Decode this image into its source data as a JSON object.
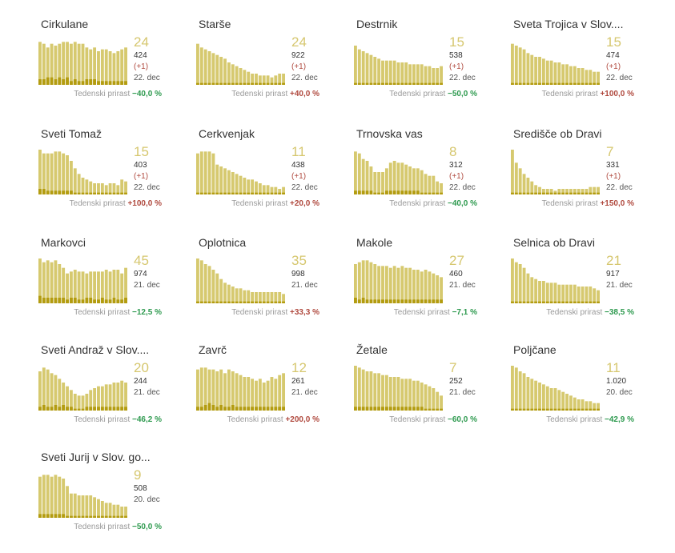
{
  "colors": {
    "bar_light": "#d6c96f",
    "bar_dark": "#b39c10",
    "growth_up": "#b04a3f",
    "growth_down": "#2e9a4f",
    "big_number": "#d6c76f"
  },
  "growth_label": "Tedenski prirast",
  "chart_data": [
    {
      "type": "bar",
      "title": "Cirkulane",
      "big": "24",
      "total": "424",
      "delta": "(+1)",
      "date": "22. dec",
      "growth": "−40,0 %",
      "growth_dir": "down",
      "values": [
        23,
        22,
        20,
        22,
        21,
        22,
        23,
        23,
        22,
        23,
        22,
        22,
        20,
        19,
        20,
        18,
        19,
        19,
        18,
        17,
        18,
        19,
        20
      ],
      "values_dark": [
        3,
        3,
        4,
        4,
        3,
        4,
        3,
        4,
        2,
        3,
        2,
        2,
        3,
        3,
        3,
        2,
        2,
        2,
        2,
        2,
        2,
        2,
        2
      ],
      "ylim": [
        0,
        24
      ]
    },
    {
      "type": "bar",
      "title": "Starše",
      "big": "24",
      "total": "922",
      "delta": "(+1)",
      "date": "22. dec",
      "growth": "+40,0 %",
      "growth_dir": "up",
      "values": [
        22,
        20,
        19,
        18,
        17,
        16,
        15,
        14,
        12,
        11,
        10,
        9,
        8,
        7,
        6,
        6,
        5,
        5,
        5,
        4,
        5,
        6,
        6
      ],
      "values_dark": [
        1,
        1,
        1,
        1,
        1,
        1,
        1,
        1,
        1,
        1,
        1,
        1,
        1,
        1,
        1,
        1,
        1,
        1,
        1,
        1,
        1,
        1,
        1
      ],
      "ylim": [
        0,
        24
      ]
    },
    {
      "type": "bar",
      "title": "Destrnik",
      "big": "15",
      "total": "538",
      "delta": "(+1)",
      "date": "22. dec",
      "growth": "−50,0 %",
      "growth_dir": "down",
      "values": [
        21,
        19,
        18,
        17,
        16,
        15,
        14,
        13,
        13,
        13,
        13,
        12,
        12,
        12,
        11,
        11,
        11,
        11,
        10,
        10,
        9,
        9,
        10
      ],
      "values_dark": [
        1,
        1,
        1,
        1,
        1,
        1,
        1,
        1,
        1,
        1,
        1,
        1,
        1,
        1,
        1,
        1,
        1,
        1,
        1,
        1,
        1,
        1,
        1
      ],
      "ylim": [
        0,
        24
      ]
    },
    {
      "type": "bar",
      "title": "Sveta Trojica v Slov....",
      "big": "15",
      "total": "474",
      "delta": "(+1)",
      "date": "22. dec",
      "growth": "+100,0 %",
      "growth_dir": "up",
      "values": [
        22,
        21,
        20,
        19,
        17,
        16,
        15,
        15,
        14,
        13,
        13,
        12,
        12,
        11,
        11,
        10,
        10,
        9,
        9,
        8,
        8,
        7,
        7
      ],
      "values_dark": [
        1,
        1,
        1,
        1,
        1,
        1,
        1,
        1,
        1,
        1,
        1,
        1,
        1,
        1,
        1,
        1,
        1,
        1,
        1,
        1,
        1,
        1,
        1
      ],
      "ylim": [
        0,
        24
      ]
    },
    {
      "type": "bar",
      "title": "Sveti Tomaž",
      "big": "15",
      "total": "403",
      "delta": "(+1)",
      "date": "22. dec",
      "growth": "+100,0 %",
      "growth_dir": "up",
      "values": [
        24,
        22,
        22,
        22,
        23,
        23,
        22,
        21,
        18,
        14,
        11,
        9,
        8,
        7,
        6,
        6,
        6,
        5,
        6,
        6,
        5,
        8,
        7
      ],
      "values_dark": [
        3,
        3,
        2,
        2,
        2,
        2,
        2,
        2,
        2,
        1,
        1,
        1,
        1,
        1,
        1,
        1,
        1,
        1,
        1,
        1,
        1,
        1,
        1
      ],
      "ylim": [
        0,
        24
      ]
    },
    {
      "type": "bar",
      "title": "Cerkvenjak",
      "big": "11",
      "total": "438",
      "delta": "(+1)",
      "date": "22. dec",
      "growth": "+20,0 %",
      "growth_dir": "up",
      "values": [
        22,
        23,
        23,
        23,
        22,
        16,
        15,
        14,
        13,
        12,
        11,
        10,
        9,
        8,
        8,
        7,
        6,
        5,
        5,
        4,
        4,
        3,
        4
      ],
      "values_dark": [
        1,
        1,
        1,
        1,
        1,
        1,
        1,
        1,
        1,
        1,
        1,
        1,
        1,
        1,
        1,
        1,
        1,
        1,
        1,
        1,
        1,
        1,
        1
      ],
      "ylim": [
        0,
        24
      ]
    },
    {
      "type": "bar",
      "title": "Trnovska vas",
      "big": "8",
      "total": "312",
      "delta": "(+1)",
      "date": "22. dec",
      "growth": "−40,0 %",
      "growth_dir": "down",
      "values": [
        23,
        22,
        19,
        18,
        15,
        12,
        12,
        12,
        14,
        17,
        18,
        17,
        17,
        16,
        15,
        14,
        14,
        13,
        11,
        10,
        10,
        7,
        6
      ],
      "values_dark": [
        2,
        2,
        2,
        2,
        2,
        1,
        1,
        1,
        2,
        2,
        2,
        2,
        2,
        2,
        2,
        2,
        2,
        1,
        1,
        1,
        1,
        1,
        1
      ],
      "ylim": [
        0,
        24
      ]
    },
    {
      "type": "bar",
      "title": "Središče ob Dravi",
      "big": "7",
      "total": "331",
      "delta": "(+1)",
      "date": "22. dec",
      "growth": "+150,0 %",
      "growth_dir": "up",
      "values": [
        24,
        17,
        14,
        11,
        9,
        7,
        5,
        4,
        3,
        3,
        3,
        2,
        3,
        3,
        3,
        3,
        3,
        3,
        3,
        3,
        4,
        4,
        4
      ],
      "values_dark": [
        1,
        1,
        1,
        1,
        1,
        1,
        1,
        1,
        1,
        1,
        1,
        1,
        1,
        1,
        1,
        1,
        1,
        1,
        1,
        1,
        1,
        1,
        1
      ],
      "ylim": [
        0,
        24
      ]
    },
    {
      "type": "bar",
      "title": "Markovci",
      "big": "45",
      "total": "974",
      "delta": "",
      "date": "21. dec",
      "growth": "−12,5 %",
      "growth_dir": "down",
      "values": [
        24,
        22,
        23,
        22,
        23,
        21,
        19,
        16,
        17,
        18,
        17,
        17,
        16,
        17,
        17,
        17,
        17,
        18,
        17,
        18,
        18,
        16,
        19
      ],
      "values_dark": [
        4,
        3,
        3,
        3,
        3,
        3,
        3,
        2,
        3,
        3,
        2,
        2,
        3,
        3,
        2,
        2,
        3,
        2,
        2,
        3,
        2,
        2,
        3
      ],
      "ylim": [
        0,
        24
      ]
    },
    {
      "type": "bar",
      "title": "Oplotnica",
      "big": "35",
      "total": "998",
      "delta": "",
      "date": "21. dec",
      "growth": "+33,3 %",
      "growth_dir": "up",
      "values": [
        24,
        23,
        21,
        20,
        18,
        16,
        13,
        11,
        10,
        9,
        8,
        8,
        7,
        7,
        6,
        6,
        6,
        6,
        6,
        6,
        6,
        6,
        5
      ],
      "values_dark": [
        1,
        1,
        1,
        1,
        1,
        1,
        1,
        1,
        1,
        1,
        1,
        1,
        1,
        1,
        1,
        1,
        1,
        1,
        1,
        1,
        1,
        1,
        1
      ],
      "ylim": [
        0,
        24
      ]
    },
    {
      "type": "bar",
      "title": "Makole",
      "big": "27",
      "total": "460",
      "delta": "",
      "date": "21. dec",
      "growth": "−7,1 %",
      "growth_dir": "down",
      "values": [
        21,
        22,
        23,
        23,
        22,
        21,
        20,
        20,
        20,
        19,
        20,
        19,
        20,
        19,
        19,
        18,
        18,
        17,
        18,
        17,
        16,
        15,
        14
      ],
      "values_dark": [
        3,
        2,
        3,
        2,
        2,
        2,
        2,
        2,
        2,
        2,
        2,
        2,
        2,
        2,
        2,
        2,
        2,
        2,
        2,
        2,
        2,
        2,
        2
      ],
      "ylim": [
        0,
        24
      ]
    },
    {
      "type": "bar",
      "title": "Selnica ob Dravi",
      "big": "21",
      "total": "917",
      "delta": "",
      "date": "21. dec",
      "growth": "−38,5 %",
      "growth_dir": "down",
      "values": [
        24,
        22,
        21,
        19,
        16,
        14,
        13,
        12,
        12,
        11,
        11,
        11,
        10,
        10,
        10,
        10,
        10,
        9,
        9,
        9,
        9,
        8,
        7
      ],
      "values_dark": [
        1,
        1,
        1,
        1,
        1,
        1,
        1,
        1,
        1,
        1,
        1,
        1,
        1,
        1,
        1,
        1,
        1,
        1,
        1,
        1,
        1,
        1,
        1
      ],
      "ylim": [
        0,
        24
      ]
    },
    {
      "type": "bar",
      "title": "Sveti Andraž v Slov....",
      "big": "20",
      "total": "244",
      "delta": "",
      "date": "21. dec",
      "growth": "−46,2 %",
      "growth_dir": "down",
      "values": [
        21,
        23,
        22,
        20,
        19,
        17,
        15,
        13,
        11,
        9,
        8,
        8,
        9,
        11,
        12,
        13,
        13,
        14,
        14,
        15,
        15,
        16,
        15
      ],
      "values_dark": [
        2,
        3,
        2,
        2,
        3,
        2,
        3,
        2,
        2,
        1,
        1,
        1,
        2,
        2,
        2,
        2,
        2,
        2,
        2,
        2,
        2,
        2,
        2
      ],
      "ylim": [
        0,
        24
      ]
    },
    {
      "type": "bar",
      "title": "Zavrč",
      "big": "12",
      "total": "261",
      "delta": "",
      "date": "21. dec",
      "growth": "+200,0 %",
      "growth_dir": "up",
      "values": [
        22,
        23,
        23,
        22,
        22,
        21,
        22,
        20,
        22,
        21,
        20,
        19,
        18,
        18,
        17,
        16,
        17,
        15,
        16,
        18,
        17,
        19,
        20
      ],
      "values_dark": [
        2,
        2,
        3,
        4,
        3,
        2,
        3,
        2,
        2,
        3,
        2,
        2,
        2,
        2,
        2,
        2,
        2,
        2,
        2,
        2,
        2,
        2,
        2
      ],
      "ylim": [
        0,
        24
      ]
    },
    {
      "type": "bar",
      "title": "Žetale",
      "big": "7",
      "total": "252",
      "delta": "",
      "date": "21. dec",
      "growth": "−60,0 %",
      "growth_dir": "down",
      "values": [
        24,
        23,
        22,
        21,
        21,
        20,
        20,
        19,
        19,
        18,
        18,
        18,
        17,
        17,
        17,
        16,
        16,
        15,
        14,
        13,
        12,
        10,
        8
      ],
      "values_dark": [
        2,
        2,
        2,
        2,
        2,
        2,
        2,
        2,
        2,
        2,
        2,
        2,
        2,
        2,
        2,
        2,
        2,
        2,
        1,
        1,
        1,
        1,
        1
      ],
      "ylim": [
        0,
        24
      ]
    },
    {
      "type": "bar",
      "title": "Poljčane",
      "big": "11",
      "total": "1.020",
      "delta": "",
      "date": "20. dec",
      "growth": "−42,9 %",
      "growth_dir": "down",
      "values": [
        24,
        23,
        21,
        20,
        18,
        17,
        16,
        15,
        14,
        13,
        12,
        12,
        11,
        10,
        9,
        8,
        7,
        6,
        6,
        5,
        5,
        4,
        4
      ],
      "values_dark": [
        1,
        1,
        1,
        1,
        1,
        1,
        1,
        1,
        1,
        1,
        1,
        1,
        1,
        1,
        1,
        1,
        1,
        1,
        1,
        1,
        1,
        1,
        1
      ],
      "ylim": [
        0,
        24
      ]
    },
    {
      "type": "bar",
      "title": "Sveti Jurij v Slov. go...",
      "big": "9",
      "total": "508",
      "delta": "",
      "date": "20. dec",
      "growth": "−50,0 %",
      "growth_dir": "down",
      "values": [
        22,
        23,
        23,
        22,
        23,
        22,
        21,
        17,
        13,
        13,
        12,
        12,
        12,
        12,
        11,
        10,
        9,
        8,
        8,
        7,
        7,
        6,
        6
      ],
      "values_dark": [
        2,
        2,
        2,
        2,
        2,
        2,
        2,
        1,
        1,
        1,
        1,
        1,
        1,
        1,
        1,
        1,
        1,
        1,
        1,
        1,
        1,
        1,
        1
      ],
      "ylim": [
        0,
        24
      ]
    }
  ]
}
